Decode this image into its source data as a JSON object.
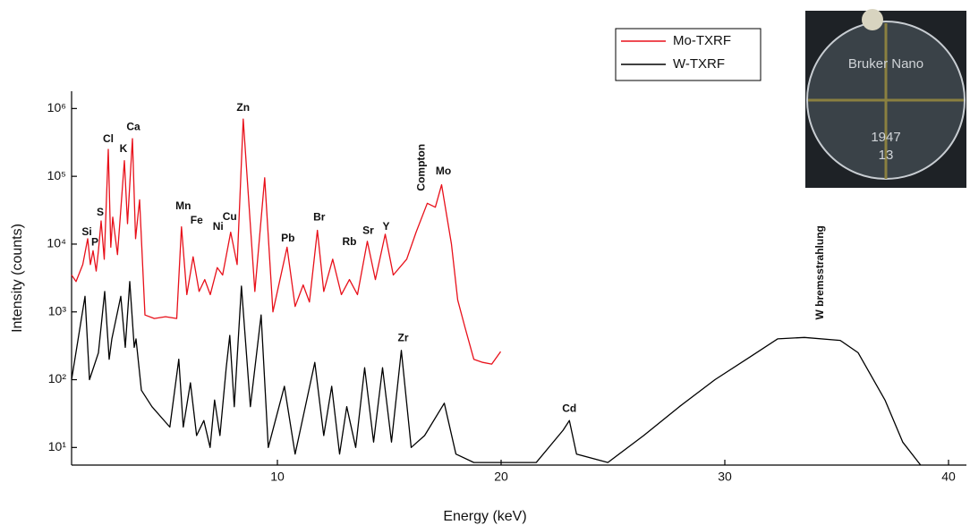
{
  "chart_data": {
    "type": "line",
    "x_label": "Energy (keV)",
    "y_label": "Intensity (counts)",
    "log_y": true,
    "legend": "top-right",
    "xlim": [
      0.8,
      40.8
    ],
    "xticks": [
      10,
      20,
      30,
      40
    ],
    "ylim": [
      5.5,
      1800000
    ],
    "yticks": [
      {
        "value": 10,
        "label": "10¹"
      },
      {
        "value": 100,
        "label": "10²"
      },
      {
        "value": 1000,
        "label": "10³"
      },
      {
        "value": 10000,
        "label": "10⁴"
      },
      {
        "value": 100000,
        "label": "10⁵"
      },
      {
        "value": 1000000,
        "label": "10⁶"
      }
    ],
    "series": [
      {
        "name": "Mo-TXRF",
        "color": "#e8101a",
        "x": [
          0.8,
          1.0,
          1.3,
          1.52,
          1.64,
          1.76,
          1.9,
          2.0,
          2.12,
          2.26,
          2.44,
          2.55,
          2.64,
          2.85,
          3.16,
          3.3,
          3.52,
          3.66,
          3.84,
          4.08,
          4.5,
          5.0,
          5.5,
          5.71,
          5.95,
          6.23,
          6.5,
          6.75,
          7.0,
          7.31,
          7.55,
          7.91,
          8.2,
          8.47,
          8.99,
          9.43,
          9.8,
          10.43,
          10.79,
          11.15,
          11.43,
          11.79,
          12.07,
          12.47,
          12.86,
          13.22,
          13.58,
          14.02,
          14.38,
          14.82,
          15.18,
          15.78,
          16.2,
          16.7,
          17.06,
          17.34,
          17.78,
          18.06,
          18.38,
          18.78,
          19.18,
          19.58,
          19.98
        ],
        "values": [
          3500,
          2800,
          5000,
          12000,
          5000,
          8000,
          4000,
          8000,
          22000,
          6000,
          250000,
          9000,
          25000,
          7000,
          170000,
          20000,
          360000,
          12000,
          45000,
          900,
          800,
          850,
          800,
          18000,
          1800,
          6500,
          2000,
          3000,
          1800,
          4500,
          3500,
          15000,
          5000,
          700000,
          2000,
          95000,
          1000,
          9000,
          1200,
          2500,
          1400,
          16000,
          2000,
          6000,
          1800,
          3000,
          1800,
          11000,
          3000,
          14000,
          3500,
          6000,
          15000,
          40000,
          35000,
          75000,
          10000,
          1500,
          600,
          200,
          180,
          170,
          260
        ]
      },
      {
        "name": "W-TXRF",
        "color": "#000000",
        "x": [
          0.8,
          1.4,
          1.6,
          2.0,
          2.28,
          2.48,
          2.6,
          3.0,
          3.2,
          3.4,
          3.6,
          3.68,
          3.92,
          4.39,
          5.19,
          5.59,
          5.79,
          6.11,
          6.39,
          6.71,
          6.99,
          7.19,
          7.43,
          7.71,
          7.87,
          8.07,
          8.39,
          8.79,
          9.27,
          9.59,
          10.31,
          10.79,
          11.67,
          12.07,
          12.43,
          12.78,
          13.1,
          13.5,
          13.9,
          14.3,
          14.7,
          15.1,
          15.54,
          15.98,
          16.58,
          17.46,
          17.98,
          18.78,
          19.98,
          21.57,
          22.77,
          23.05,
          23.37,
          24.77,
          26.37,
          27.97,
          29.56,
          31.16,
          32.36,
          33.56,
          35.16,
          35.96,
          37.16,
          37.95,
          38.75
        ],
        "values": [
          100,
          1700,
          100,
          250,
          2000,
          200,
          400,
          1700,
          300,
          2800,
          300,
          400,
          70,
          40,
          20,
          200,
          20,
          90,
          15,
          25,
          10,
          50,
          15,
          150,
          450,
          40,
          2400,
          40,
          900,
          10,
          80,
          8,
          180,
          15,
          80,
          8,
          40,
          10,
          150,
          12,
          150,
          12,
          270,
          10,
          15,
          45,
          8,
          6,
          6,
          6,
          18,
          25,
          8,
          6,
          15,
          40,
          100,
          220,
          400,
          420,
          380,
          250,
          50,
          12,
          5.5
        ]
      }
    ],
    "annotations": [
      {
        "text": "Si",
        "x": 1.48,
        "y": 15000
      },
      {
        "text": "P",
        "x": 1.84,
        "y": 10500
      },
      {
        "text": "S",
        "x": 2.08,
        "y": 29000
      },
      {
        "text": "Cl",
        "x": 2.44,
        "y": 350000
      },
      {
        "text": "K",
        "x": 3.12,
        "y": 250000
      },
      {
        "text": "Ca",
        "x": 3.56,
        "y": 530000
      },
      {
        "text": "Zn",
        "x": 8.47,
        "y": 1020000
      },
      {
        "text": "Mn",
        "x": 5.79,
        "y": 36000
      },
      {
        "text": "Fe",
        "x": 6.39,
        "y": 22000
      },
      {
        "text": "Ni",
        "x": 7.35,
        "y": 18000
      },
      {
        "text": "Cu",
        "x": 7.87,
        "y": 25000
      },
      {
        "text": "Pb",
        "x": 10.47,
        "y": 12000
      },
      {
        "text": "Br",
        "x": 11.87,
        "y": 24500
      },
      {
        "text": "Rb",
        "x": 13.22,
        "y": 10700
      },
      {
        "text": "Sr",
        "x": 14.06,
        "y": 15500
      },
      {
        "text": "Y",
        "x": 14.86,
        "y": 18000
      },
      {
        "text": "Mo",
        "x": 17.42,
        "y": 117000
      },
      {
        "text": "Zr",
        "x": 15.62,
        "y": 410
      },
      {
        "text": "Cd",
        "x": 23.05,
        "y": 37
      },
      {
        "text": "Compton",
        "x": 16.46,
        "y": 135000,
        "vertical": true
      },
      {
        "text": "W bremsstrahlung",
        "x": 34.28,
        "y": 3800,
        "vertical": true
      }
    ],
    "inset_texts": [
      "Bruker Nano",
      "1947",
      "13"
    ]
  }
}
